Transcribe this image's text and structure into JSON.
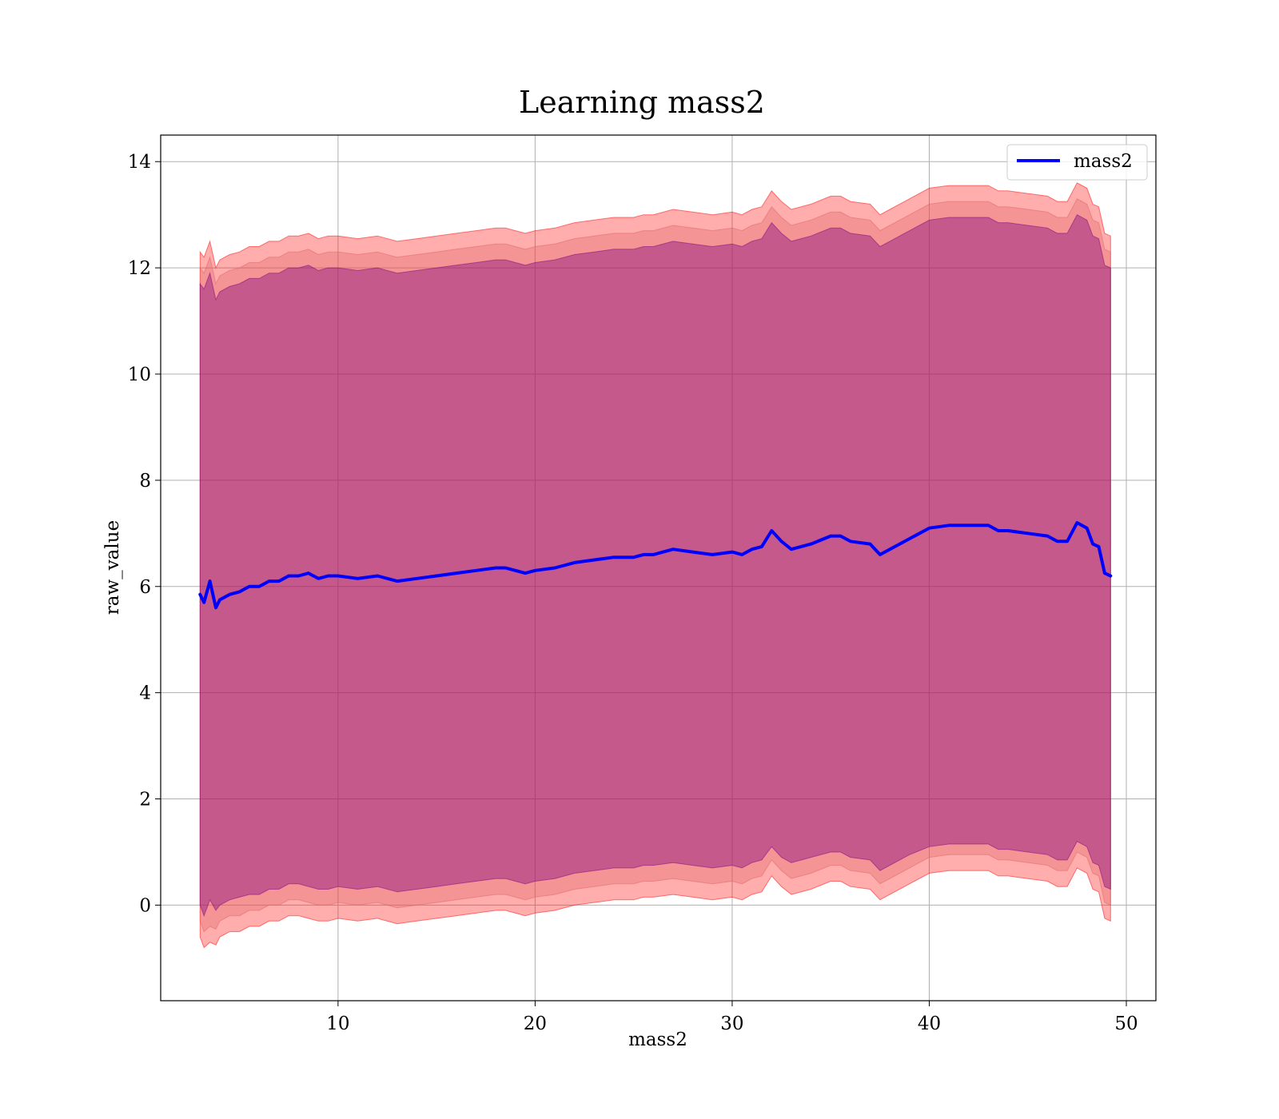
{
  "chart_data": {
    "type": "line",
    "title": "Learning mass2",
    "xlabel": "mass2",
    "ylabel": "raw_value",
    "xlim": [
      1,
      51.5
    ],
    "ylim": [
      -1.8,
      14.5
    ],
    "xticks": [
      10,
      20,
      30,
      40,
      50
    ],
    "yticks": [
      0,
      2,
      4,
      6,
      8,
      10,
      12,
      14
    ],
    "grid": true,
    "legend": {
      "placement": "top-right",
      "entries": [
        "mass2"
      ]
    },
    "colors": {
      "line": "#0000ff",
      "band_outer": "#ff0000",
      "band_mid": "#e06666",
      "band_inner": "#800080"
    },
    "series": [
      {
        "name": "mass2",
        "x": [
          3.0,
          3.2,
          3.5,
          3.8,
          4.0,
          4.5,
          5.0,
          5.5,
          6.0,
          6.5,
          7.0,
          7.5,
          8.0,
          8.5,
          9.0,
          9.5,
          10.0,
          11.0,
          12.0,
          13.0,
          14.0,
          15.0,
          16.0,
          17.0,
          18.0,
          18.5,
          19.0,
          19.5,
          20.0,
          21.0,
          22.0,
          23.0,
          24.0,
          25.0,
          25.5,
          26.0,
          27.0,
          28.0,
          29.0,
          30.0,
          30.5,
          31.0,
          31.5,
          32.0,
          32.5,
          33.0,
          34.0,
          35.0,
          35.5,
          36.0,
          37.0,
          37.5,
          38.0,
          39.0,
          40.0,
          41.0,
          42.0,
          43.0,
          43.5,
          44.0,
          45.0,
          46.0,
          46.5,
          47.0,
          47.5,
          48.0,
          48.3,
          48.6,
          48.9,
          49.2
        ],
        "y": [
          5.85,
          5.7,
          6.1,
          5.6,
          5.75,
          5.85,
          5.9,
          6.0,
          6.0,
          6.1,
          6.1,
          6.2,
          6.2,
          6.25,
          6.15,
          6.2,
          6.2,
          6.15,
          6.2,
          6.1,
          6.15,
          6.2,
          6.25,
          6.3,
          6.35,
          6.35,
          6.3,
          6.25,
          6.3,
          6.35,
          6.45,
          6.5,
          6.55,
          6.55,
          6.6,
          6.6,
          6.7,
          6.65,
          6.6,
          6.65,
          6.6,
          6.7,
          6.75,
          7.05,
          6.85,
          6.7,
          6.8,
          6.95,
          6.95,
          6.85,
          6.8,
          6.6,
          6.7,
          6.9,
          7.1,
          7.15,
          7.15,
          7.15,
          7.05,
          7.05,
          7.0,
          6.95,
          6.85,
          6.85,
          7.2,
          7.1,
          6.8,
          6.75,
          6.25,
          6.2
        ]
      }
    ],
    "bands": [
      {
        "layer": "outer",
        "lower": [
          -0.6,
          -0.8,
          -0.7,
          -0.75,
          -0.6,
          -0.5,
          -0.5,
          -0.4,
          -0.4,
          -0.3,
          -0.3,
          -0.2,
          -0.2,
          -0.25,
          -0.3,
          -0.3,
          -0.25,
          -0.3,
          -0.25,
          -0.35,
          -0.3,
          -0.25,
          -0.2,
          -0.15,
          -0.1,
          -0.1,
          -0.15,
          -0.2,
          -0.15,
          -0.1,
          0.0,
          0.05,
          0.1,
          0.1,
          0.15,
          0.15,
          0.2,
          0.15,
          0.1,
          0.15,
          0.1,
          0.2,
          0.25,
          0.55,
          0.35,
          0.2,
          0.3,
          0.45,
          0.45,
          0.35,
          0.3,
          0.1,
          0.2,
          0.4,
          0.6,
          0.65,
          0.65,
          0.65,
          0.55,
          0.55,
          0.5,
          0.45,
          0.35,
          0.35,
          0.7,
          0.6,
          0.3,
          0.25,
          -0.25,
          -0.3
        ],
        "upper": [
          12.3,
          12.2,
          12.5,
          12.0,
          12.15,
          12.25,
          12.3,
          12.4,
          12.4,
          12.5,
          12.5,
          12.6,
          12.6,
          12.65,
          12.55,
          12.6,
          12.6,
          12.55,
          12.6,
          12.5,
          12.55,
          12.6,
          12.65,
          12.7,
          12.75,
          12.75,
          12.7,
          12.65,
          12.7,
          12.75,
          12.85,
          12.9,
          12.95,
          12.95,
          13.0,
          13.0,
          13.1,
          13.05,
          13.0,
          13.05,
          13.0,
          13.1,
          13.15,
          13.45,
          13.25,
          13.1,
          13.2,
          13.35,
          13.35,
          13.25,
          13.2,
          13.0,
          13.1,
          13.3,
          13.5,
          13.55,
          13.55,
          13.55,
          13.45,
          13.45,
          13.4,
          13.35,
          13.25,
          13.25,
          13.6,
          13.5,
          13.2,
          13.15,
          12.65,
          12.6
        ]
      },
      {
        "layer": "mid",
        "lower": [
          -0.3,
          -0.5,
          -0.4,
          -0.45,
          -0.3,
          -0.2,
          -0.2,
          -0.1,
          -0.1,
          0.0,
          0.0,
          0.1,
          0.1,
          0.05,
          0.0,
          0.0,
          0.05,
          0.0,
          0.05,
          -0.05,
          0.0,
          0.05,
          0.1,
          0.15,
          0.2,
          0.2,
          0.15,
          0.1,
          0.15,
          0.2,
          0.3,
          0.35,
          0.4,
          0.4,
          0.45,
          0.45,
          0.5,
          0.45,
          0.4,
          0.45,
          0.4,
          0.5,
          0.55,
          0.85,
          0.65,
          0.5,
          0.6,
          0.75,
          0.75,
          0.65,
          0.6,
          0.4,
          0.5,
          0.7,
          0.9,
          0.95,
          0.95,
          0.95,
          0.85,
          0.85,
          0.8,
          0.75,
          0.65,
          0.65,
          1.0,
          0.9,
          0.6,
          0.55,
          0.05,
          0.0
        ],
        "upper": [
          12.0,
          11.9,
          12.2,
          11.7,
          11.85,
          11.95,
          12.0,
          12.1,
          12.1,
          12.2,
          12.2,
          12.3,
          12.3,
          12.35,
          12.25,
          12.3,
          12.3,
          12.25,
          12.3,
          12.2,
          12.25,
          12.3,
          12.35,
          12.4,
          12.45,
          12.45,
          12.4,
          12.35,
          12.4,
          12.45,
          12.55,
          12.6,
          12.65,
          12.65,
          12.7,
          12.7,
          12.8,
          12.75,
          12.7,
          12.75,
          12.7,
          12.8,
          12.85,
          13.15,
          12.95,
          12.8,
          12.9,
          13.05,
          13.05,
          12.95,
          12.9,
          12.7,
          12.8,
          13.0,
          13.2,
          13.25,
          13.25,
          13.25,
          13.15,
          13.15,
          13.1,
          13.05,
          12.95,
          12.95,
          13.3,
          13.2,
          12.9,
          12.85,
          12.35,
          12.3
        ]
      },
      {
        "layer": "inner",
        "lower": [
          0.0,
          -0.2,
          0.1,
          -0.1,
          0.0,
          0.1,
          0.15,
          0.2,
          0.2,
          0.3,
          0.3,
          0.4,
          0.4,
          0.35,
          0.3,
          0.3,
          0.35,
          0.3,
          0.35,
          0.25,
          0.3,
          0.35,
          0.4,
          0.45,
          0.5,
          0.5,
          0.45,
          0.4,
          0.45,
          0.5,
          0.6,
          0.65,
          0.7,
          0.7,
          0.75,
          0.75,
          0.8,
          0.75,
          0.7,
          0.75,
          0.7,
          0.8,
          0.85,
          1.1,
          0.9,
          0.8,
          0.9,
          1.0,
          1.0,
          0.9,
          0.85,
          0.65,
          0.75,
          0.95,
          1.1,
          1.15,
          1.15,
          1.15,
          1.05,
          1.05,
          1.0,
          0.95,
          0.85,
          0.85,
          1.2,
          1.1,
          0.8,
          0.75,
          0.35,
          0.3
        ],
        "upper": [
          11.7,
          11.6,
          11.9,
          11.4,
          11.55,
          11.65,
          11.7,
          11.8,
          11.8,
          11.9,
          11.9,
          12.0,
          12.0,
          12.05,
          11.95,
          12.0,
          12.0,
          11.95,
          12.0,
          11.9,
          11.95,
          12.0,
          12.05,
          12.1,
          12.15,
          12.15,
          12.1,
          12.05,
          12.1,
          12.15,
          12.25,
          12.3,
          12.35,
          12.35,
          12.4,
          12.4,
          12.5,
          12.45,
          12.4,
          12.45,
          12.4,
          12.5,
          12.55,
          12.85,
          12.65,
          12.5,
          12.6,
          12.75,
          12.75,
          12.65,
          12.6,
          12.4,
          12.5,
          12.7,
          12.9,
          12.95,
          12.95,
          12.95,
          12.85,
          12.85,
          12.8,
          12.75,
          12.65,
          12.65,
          13.0,
          12.9,
          12.6,
          12.55,
          12.05,
          12.0
        ]
      }
    ]
  }
}
